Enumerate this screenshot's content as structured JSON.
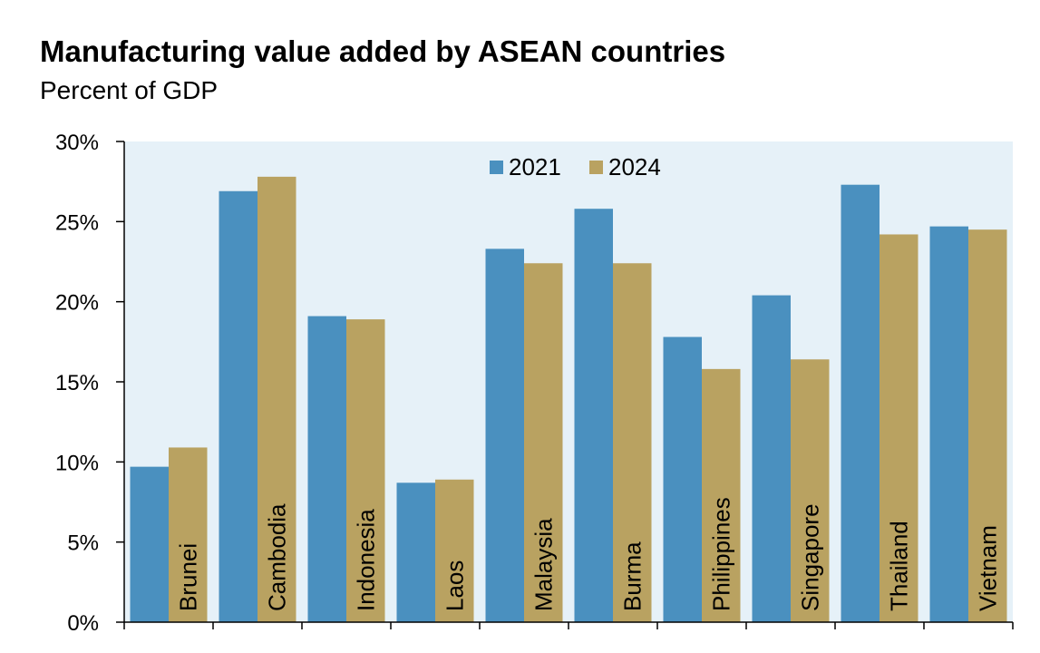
{
  "chart_data": {
    "type": "bar",
    "title": "Manufacturing value added by ASEAN countries",
    "subtitle": "Percent of GDP",
    "categories": [
      "Brunei",
      "Cambodia",
      "Indonesia",
      "Laos",
      "Malaysia",
      "Burma",
      "Philippines",
      "Singapore",
      "Thailand",
      "Vietnam"
    ],
    "series": [
      {
        "name": "2021",
        "color": "#4a90bf",
        "values": [
          9.7,
          26.9,
          19.1,
          8.7,
          23.3,
          25.8,
          17.8,
          20.4,
          27.3,
          24.7
        ]
      },
      {
        "name": "2024",
        "color": "#b9a261",
        "values": [
          10.9,
          27.8,
          18.9,
          8.9,
          22.4,
          22.4,
          15.8,
          16.4,
          24.2,
          24.5
        ]
      }
    ],
    "yticks": [
      "0%",
      "5%",
      "10%",
      "15%",
      "20%",
      "25%",
      "30%"
    ],
    "ylim": [
      0,
      30
    ],
    "legend_position": "top-center",
    "plot_background": "#e6f1f8"
  }
}
